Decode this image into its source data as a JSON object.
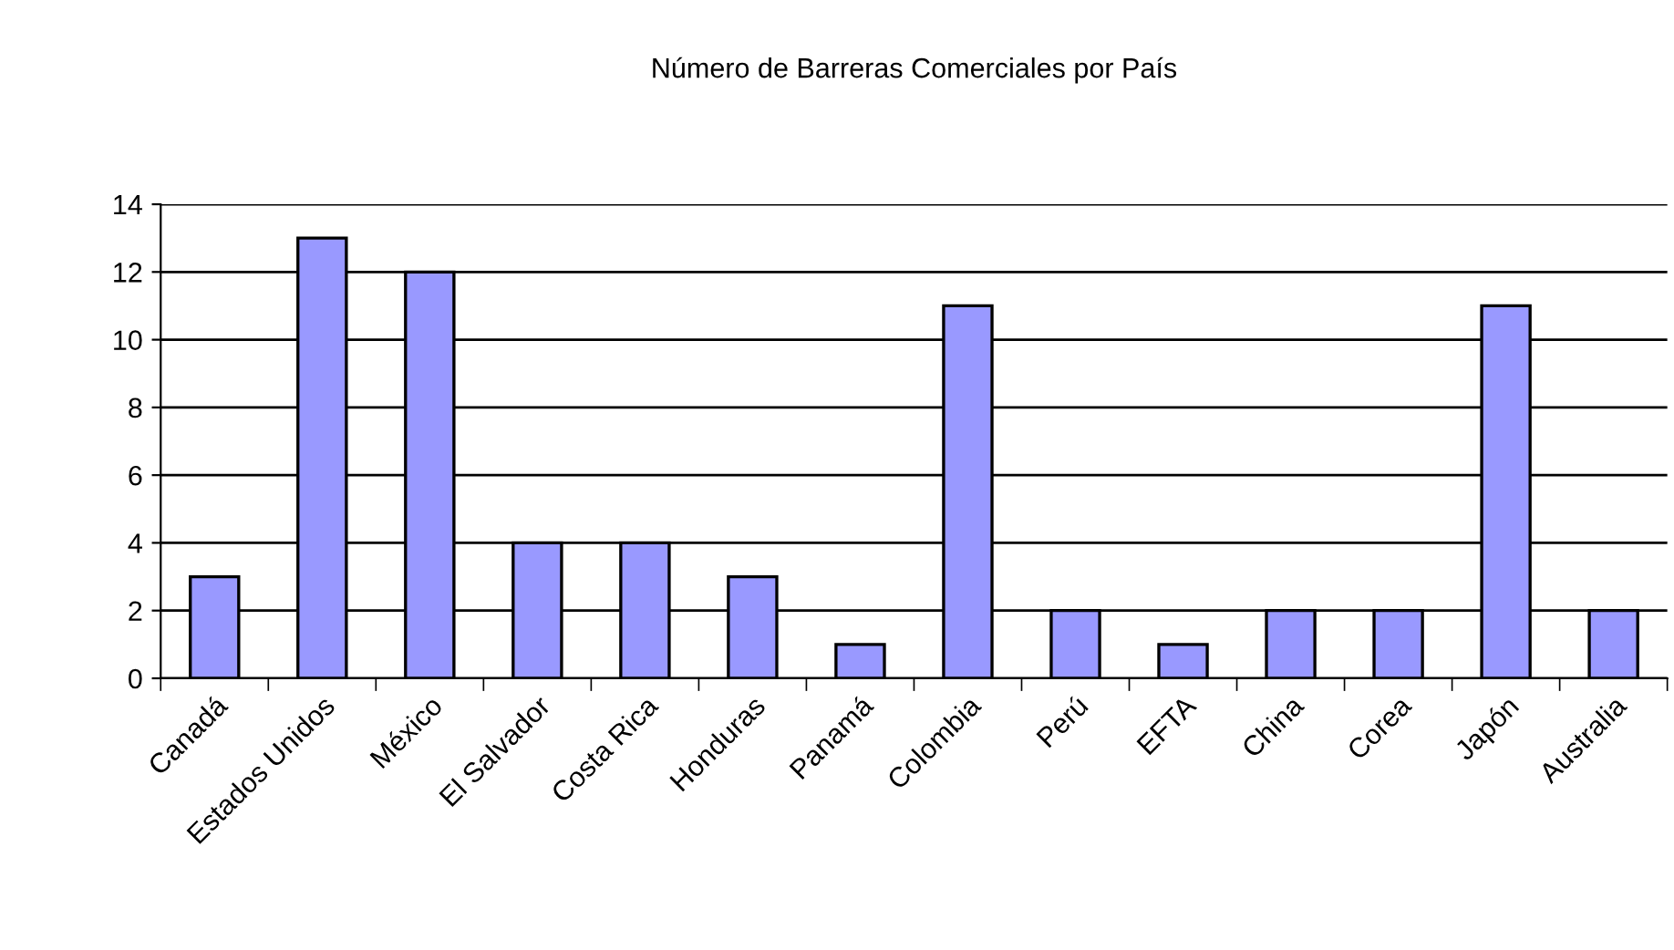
{
  "chart_data": {
    "type": "bar",
    "title": "Número de Barreras Comerciales por País",
    "categories": [
      "Canadá",
      "Estados Unidos",
      "México",
      "El Salvador",
      "Costa Rica",
      "Honduras",
      "Panamá",
      "Colombia",
      "Perú",
      "EFTA",
      "China",
      "Corea",
      "Japón",
      "Australia"
    ],
    "values": [
      3,
      13,
      12,
      4,
      4,
      3,
      1,
      11,
      2,
      1,
      2,
      2,
      11,
      2
    ],
    "color": "#9999ff",
    "ylim": [
      0,
      14
    ],
    "yticks": [
      0,
      2,
      4,
      6,
      8,
      10,
      12,
      14
    ],
    "grid": "y",
    "legend": false
  }
}
